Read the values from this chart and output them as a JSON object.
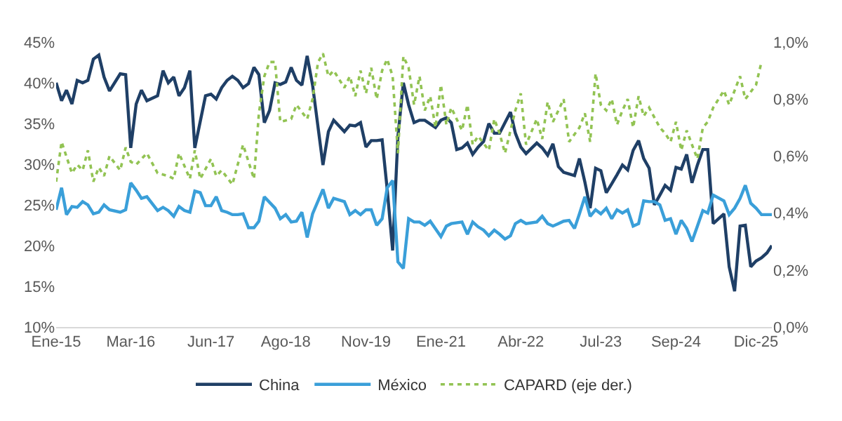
{
  "chart_data": {
    "type": "line",
    "xlim": [
      "2015-01",
      "2026-03"
    ],
    "xticks": [
      {
        "value": "2015-01",
        "label": "Ene-15"
      },
      {
        "value": "2016-03",
        "label": "Mar-16"
      },
      {
        "value": "2017-06",
        "label": "Jun-17"
      },
      {
        "value": "2018-08",
        "label": "Ago-18"
      },
      {
        "value": "2019-11",
        "label": "Nov-19"
      },
      {
        "value": "2021-01",
        "label": "Ene-21"
      },
      {
        "value": "2022-04",
        "label": "Abr-22"
      },
      {
        "value": "2023-07",
        "label": "Jul-23"
      },
      {
        "value": "2024-09",
        "label": "Sep-24"
      },
      {
        "value": "2025-12",
        "label": "Dic-25"
      }
    ],
    "ylim": [
      10,
      45
    ],
    "yticks": [
      {
        "value": 10,
        "label": "10%"
      },
      {
        "value": 15,
        "label": "15%"
      },
      {
        "value": 20,
        "label": "20%"
      },
      {
        "value": 25,
        "label": "25%"
      },
      {
        "value": 30,
        "label": "30%"
      },
      {
        "value": 35,
        "label": "35%"
      },
      {
        "value": 40,
        "label": "40%"
      },
      {
        "value": 45,
        "label": "45%"
      }
    ],
    "y2lim": [
      0,
      1
    ],
    "y2ticks": [
      {
        "value": 0,
        "label": "0,0%"
      },
      {
        "value": 0.2,
        "label": "0,2%"
      },
      {
        "value": 0.4,
        "label": "0,4%"
      },
      {
        "value": 0.6,
        "label": "0,6%"
      },
      {
        "value": 0.8,
        "label": "0,8%"
      },
      {
        "value": 1,
        "label": "1,0%"
      }
    ],
    "grid": false,
    "legend": "bottom",
    "series": [
      {
        "name": "China",
        "color": "#1f3f66",
        "line_style": "solid",
        "x": [
          "2015-01",
          "2015-02",
          "2015-03",
          "2015-04",
          "2015-05",
          "2015-06",
          "2015-07",
          "2015-08",
          "2015-09",
          "2015-10",
          "2015-11",
          "2016-01",
          "2016-02",
          "2016-03",
          "2016-04",
          "2016-05",
          "2016-06",
          "2016-08",
          "2016-09",
          "2016-10",
          "2016-11",
          "2016-12",
          "2017-01",
          "2017-02",
          "2017-03",
          "2017-05",
          "2017-06",
          "2017-07",
          "2017-08",
          "2017-09",
          "2017-10",
          "2017-11",
          "2017-12",
          "2018-01",
          "2018-02",
          "2018-03",
          "2018-04",
          "2018-05",
          "2018-06",
          "2018-07",
          "2018-08",
          "2018-09",
          "2018-10",
          "2018-11",
          "2018-12",
          "2019-01",
          "2019-03",
          "2019-04",
          "2019-05",
          "2019-07",
          "2019-08",
          "2019-09",
          "2019-10",
          "2019-11",
          "2019-12",
          "2020-01",
          "2020-02",
          "2020-03",
          "2020-04",
          "2020-05",
          "2020-06",
          "2020-07",
          "2020-08",
          "2020-09",
          "2020-10",
          "2020-12",
          "2021-01",
          "2021-02",
          "2021-03",
          "2021-04",
          "2021-05",
          "2021-06",
          "2021-07",
          "2021-08",
          "2021-09",
          "2021-10",
          "2021-11",
          "2021-12",
          "2022-01",
          "2022-02",
          "2022-03",
          "2022-04",
          "2022-05",
          "2022-07",
          "2022-08",
          "2022-09",
          "2022-10",
          "2022-11",
          "2022-12",
          "2023-01",
          "2023-02",
          "2023-03",
          "2023-04",
          "2023-05",
          "2023-06",
          "2023-07",
          "2023-08",
          "2023-09",
          "2023-10",
          "2023-11",
          "2023-12",
          "2024-01",
          "2024-02",
          "2024-03",
          "2024-04",
          "2024-05",
          "2024-06",
          "2024-07",
          "2024-08",
          "2024-09",
          "2024-10",
          "2024-11",
          "2024-12",
          "2025-01",
          "2025-02",
          "2025-03",
          "2025-04",
          "2025-06",
          "2025-07",
          "2025-08",
          "2025-09",
          "2025-10",
          "2025-11",
          "2025-12",
          "2026-01",
          "2026-02",
          "2026-03"
        ],
        "values": [
          40.0,
          37.8,
          39.1,
          37.4,
          40.3,
          40.0,
          40.3,
          42.9,
          43.4,
          40.7,
          39.0,
          41.1,
          41.0,
          32.0,
          37.4,
          39.1,
          37.8,
          38.4,
          41.5,
          40.0,
          40.7,
          38.4,
          39.4,
          41.5,
          32.0,
          38.4,
          38.6,
          38.0,
          39.4,
          40.3,
          40.8,
          40.3,
          39.4,
          39.9,
          41.9,
          41.0,
          35.1,
          36.6,
          40.0,
          39.8,
          40.1,
          41.9,
          40.3,
          39.7,
          43.3,
          39.7,
          29.9,
          34.0,
          35.4,
          34.0,
          34.8,
          34.7,
          35.1,
          32.1,
          32.9,
          32.9,
          33.0,
          26.9,
          19.4,
          33.4,
          40.0,
          37.3,
          35.1,
          35.4,
          35.4,
          34.5,
          35.4,
          35.7,
          35.1,
          31.8,
          32.0,
          32.6,
          31.2,
          32.1,
          32.8,
          35.0,
          33.8,
          33.8,
          35.1,
          36.4,
          33.8,
          32.1,
          31.3,
          32.6,
          32.0,
          31.1,
          32.5,
          29.7,
          29.0,
          28.8,
          28.6,
          30.7,
          27.8,
          24.6,
          29.5,
          29.2,
          26.5,
          27.6,
          28.7,
          29.9,
          29.3,
          31.7,
          32.9,
          30.7,
          29.5,
          25.0,
          26.2,
          27.4,
          26.8,
          29.6,
          29.4,
          31.2,
          27.7,
          29.9,
          31.8,
          31.8,
          22.7,
          23.9,
          17.4,
          14.4,
          22.4,
          22.5,
          17.4,
          18.1,
          18.5,
          19.1,
          20.0
        ]
      },
      {
        "name": "México",
        "color": "#3a9fd9",
        "line_style": "solid",
        "x": [
          "2015-01",
          "2015-02",
          "2015-03",
          "2015-04",
          "2015-05",
          "2015-06",
          "2015-07",
          "2015-08",
          "2015-09",
          "2015-10",
          "2015-11",
          "2016-01",
          "2016-02",
          "2016-03",
          "2016-04",
          "2016-05",
          "2016-06",
          "2016-08",
          "2016-09",
          "2016-10",
          "2016-11",
          "2016-12",
          "2017-01",
          "2017-02",
          "2017-03",
          "2017-04",
          "2017-05",
          "2017-06",
          "2017-07",
          "2017-08",
          "2017-09",
          "2017-10",
          "2017-11",
          "2017-12",
          "2018-01",
          "2018-02",
          "2018-03",
          "2018-04",
          "2018-06",
          "2018-07",
          "2018-08",
          "2018-09",
          "2018-10",
          "2018-11",
          "2018-12",
          "2019-01",
          "2019-03",
          "2019-04",
          "2019-05",
          "2019-07",
          "2019-08",
          "2019-09",
          "2019-10",
          "2019-11",
          "2019-12",
          "2020-01",
          "2020-02",
          "2020-03",
          "2020-04",
          "2020-05",
          "2020-06",
          "2020-07",
          "2020-08",
          "2020-09",
          "2020-10",
          "2020-11",
          "2021-01",
          "2021-02",
          "2021-03",
          "2021-05",
          "2021-06",
          "2021-07",
          "2021-08",
          "2021-09",
          "2021-10",
          "2021-11",
          "2021-12",
          "2022-01",
          "2022-02",
          "2022-03",
          "2022-04",
          "2022-05",
          "2022-07",
          "2022-08",
          "2022-09",
          "2022-10",
          "2022-11",
          "2022-12",
          "2023-01",
          "2023-02",
          "2023-03",
          "2023-04",
          "2023-05",
          "2023-06",
          "2023-07",
          "2023-08",
          "2023-09",
          "2023-10",
          "2023-11",
          "2023-12",
          "2024-01",
          "2024-02",
          "2024-03",
          "2024-04",
          "2024-05",
          "2024-06",
          "2024-07",
          "2024-08",
          "2024-09",
          "2024-10",
          "2024-11",
          "2024-12",
          "2025-01",
          "2025-02",
          "2025-03",
          "2025-04",
          "2025-06",
          "2025-07",
          "2025-08",
          "2025-09",
          "2025-10",
          "2025-11",
          "2025-12",
          "2026-01",
          "2026-03"
        ],
        "values": [
          24.4,
          27.1,
          23.8,
          24.8,
          24.7,
          25.4,
          25.0,
          23.9,
          24.1,
          25.0,
          24.4,
          24.1,
          24.4,
          27.7,
          26.8,
          25.8,
          26.0,
          24.3,
          24.7,
          24.3,
          23.6,
          24.8,
          24.3,
          24.1,
          26.7,
          26.5,
          24.9,
          24.9,
          26.0,
          24.3,
          24.1,
          23.8,
          23.8,
          23.9,
          22.2,
          22.2,
          23.0,
          26.0,
          24.6,
          23.3,
          23.8,
          22.9,
          23.0,
          24.1,
          21.0,
          23.9,
          26.9,
          24.6,
          25.8,
          25.4,
          23.8,
          24.3,
          23.8,
          24.4,
          24.4,
          22.5,
          23.3,
          27.1,
          28.0,
          18.0,
          17.2,
          23.3,
          22.9,
          22.9,
          22.5,
          23.0,
          21.1,
          22.4,
          22.7,
          22.9,
          21.4,
          22.9,
          22.3,
          21.9,
          21.2,
          21.9,
          21.4,
          20.8,
          21.2,
          22.7,
          23.1,
          22.7,
          22.9,
          23.6,
          22.7,
          22.4,
          22.7,
          23.0,
          23.1,
          22.1,
          23.9,
          26.0,
          23.6,
          24.4,
          23.9,
          24.6,
          23.3,
          24.4,
          24.0,
          24.4,
          22.4,
          22.7,
          25.5,
          25.4,
          25.4,
          25.0,
          23.1,
          23.3,
          21.4,
          23.1,
          22.1,
          20.5,
          22.4,
          24.3,
          24.0,
          26.2,
          25.5,
          23.8,
          24.6,
          25.8,
          27.4,
          25.2,
          24.6,
          23.8,
          23.8
        ]
      },
      {
        "name": "CAPARD (eje der.)",
        "color": "#92c353",
        "line_style": "dotted",
        "axis": "y2",
        "x": [
          "2015-01",
          "2015-02",
          "2015-04",
          "2015-05",
          "2015-06",
          "2015-07",
          "2015-08",
          "2015-09",
          "2015-10",
          "2015-11",
          "2016-01",
          "2016-02",
          "2016-03",
          "2016-04",
          "2016-06",
          "2016-08",
          "2016-10",
          "2016-11",
          "2016-12",
          "2017-02",
          "2017-03",
          "2017-04",
          "2017-06",
          "2017-07",
          "2017-08",
          "2017-10",
          "2017-12",
          "2018-02",
          "2018-03",
          "2018-04",
          "2018-05",
          "2018-06",
          "2018-07",
          "2018-09",
          "2018-10",
          "2018-12",
          "2019-01",
          "2019-02",
          "2019-03",
          "2019-04",
          "2019-05",
          "2019-07",
          "2019-08",
          "2019-09",
          "2019-10",
          "2019-11",
          "2019-12",
          "2020-01",
          "2020-02",
          "2020-03",
          "2020-04",
          "2020-05",
          "2020-06",
          "2020-07",
          "2020-08",
          "2020-09",
          "2020-10",
          "2020-11",
          "2020-12",
          "2021-01",
          "2021-02",
          "2021-03",
          "2021-05",
          "2021-06",
          "2021-07",
          "2021-08",
          "2021-10",
          "2021-11",
          "2021-12",
          "2022-01",
          "2022-03",
          "2022-04",
          "2022-05",
          "2022-07",
          "2022-08",
          "2022-09",
          "2022-10",
          "2022-11",
          "2022-12",
          "2023-01",
          "2023-03",
          "2023-04",
          "2023-05",
          "2023-06",
          "2023-07",
          "2023-08",
          "2023-09",
          "2023-10",
          "2023-11",
          "2023-12",
          "2024-01",
          "2024-02",
          "2024-03",
          "2024-04",
          "2024-06",
          "2024-07",
          "2024-08",
          "2024-09",
          "2024-10",
          "2024-11",
          "2024-12",
          "2025-01",
          "2025-02",
          "2025-03",
          "2025-04",
          "2025-06",
          "2025-07",
          "2025-08",
          "2025-09",
          "2025-10",
          "2025-12",
          "2026-01"
        ],
        "values": [
          0.51,
          0.65,
          0.54,
          0.57,
          0.55,
          0.62,
          0.51,
          0.56,
          0.53,
          0.6,
          0.55,
          0.63,
          0.58,
          0.57,
          0.61,
          0.54,
          0.53,
          0.52,
          0.61,
          0.52,
          0.62,
          0.52,
          0.59,
          0.53,
          0.55,
          0.5,
          0.64,
          0.52,
          0.75,
          0.88,
          0.93,
          0.93,
          0.72,
          0.73,
          0.78,
          0.73,
          0.8,
          0.93,
          0.96,
          0.88,
          0.9,
          0.84,
          0.88,
          0.81,
          0.9,
          0.82,
          0.91,
          0.8,
          0.9,
          0.94,
          0.88,
          0.61,
          0.95,
          0.91,
          0.78,
          0.88,
          0.76,
          0.81,
          0.7,
          0.85,
          0.71,
          0.77,
          0.69,
          0.78,
          0.64,
          0.67,
          0.62,
          0.73,
          0.68,
          0.61,
          0.76,
          0.82,
          0.64,
          0.73,
          0.66,
          0.79,
          0.72,
          0.76,
          0.8,
          0.65,
          0.7,
          0.75,
          0.65,
          0.89,
          0.78,
          0.76,
          0.8,
          0.71,
          0.76,
          0.8,
          0.7,
          0.81,
          0.74,
          0.77,
          0.7,
          0.68,
          0.65,
          0.72,
          0.62,
          0.69,
          0.64,
          0.59,
          0.7,
          0.72,
          0.77,
          0.83,
          0.78,
          0.83,
          0.88,
          0.8,
          0.85,
          0.93
        ]
      }
    ]
  }
}
